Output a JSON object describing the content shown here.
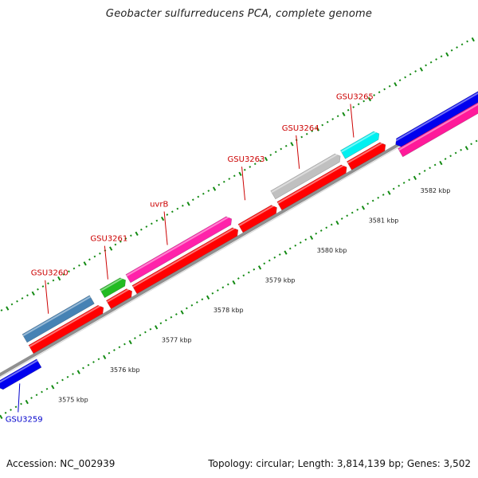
{
  "title": "Geobacter sulfurreducens PCA, complete genome",
  "footer": {
    "accession": "Accession: NC_002939",
    "topology": "Topology: circular; Length: 3,814,139 bp; Genes: 3,502"
  },
  "colors": {
    "label_forward": "#cc0000",
    "label_reverse": "#0000cc",
    "tick": "#138a13",
    "backbone": "#888888"
  },
  "ruler_ticks": [
    {
      "label": "3575 kbp",
      "position_kbp": 3575
    },
    {
      "label": "3576 kbp",
      "position_kbp": 3576
    },
    {
      "label": "3577 kbp",
      "position_kbp": 3577
    },
    {
      "label": "3578 kbp",
      "position_kbp": 3578
    },
    {
      "label": "3579 kbp",
      "position_kbp": 3579
    },
    {
      "label": "3580 kbp",
      "position_kbp": 3580
    },
    {
      "label": "3581 kbp",
      "position_kbp": 3581
    },
    {
      "label": "3582 kbp",
      "position_kbp": 3582
    }
  ],
  "features": [
    {
      "name": "",
      "strand": "reverse",
      "type": "gene",
      "color": "#0000ee",
      "start_kbp": 3574.2,
      "end_kbp": 3575.0,
      "arrow": "back"
    },
    {
      "name": "",
      "strand": "forward",
      "type": "cds",
      "color": "#ff0000",
      "start_kbp": 3575.0,
      "end_kbp": 3576.4,
      "arrow": "forward"
    },
    {
      "name": "",
      "strand": "forward",
      "type": "gene",
      "color": "#4682b4",
      "start_kbp": 3575.0,
      "end_kbp": 3576.3,
      "arrow": "none"
    },
    {
      "name": "",
      "strand": "forward",
      "type": "gene",
      "color": "#22bb22",
      "start_kbp": 3576.5,
      "end_kbp": 3576.95,
      "arrow": "forward"
    },
    {
      "name": "",
      "strand": "forward",
      "type": "cds",
      "color": "#ff0000",
      "start_kbp": 3576.5,
      "end_kbp": 3576.95,
      "arrow": "forward"
    },
    {
      "name": "",
      "strand": "forward",
      "type": "gene",
      "color": "#ff22aa",
      "start_kbp": 3577.0,
      "end_kbp": 3579.0,
      "arrow": "forward"
    },
    {
      "name": "",
      "strand": "forward",
      "type": "cds",
      "color": "#ff0000",
      "start_kbp": 3577.0,
      "end_kbp": 3579.0,
      "arrow": "forward"
    },
    {
      "name": "",
      "strand": "forward",
      "type": "cds",
      "color": "#ff0000",
      "start_kbp": 3579.05,
      "end_kbp": 3579.75,
      "arrow": "forward"
    },
    {
      "name": "",
      "strand": "forward",
      "type": "gene",
      "color": "#c0c0c0",
      "start_kbp": 3579.8,
      "end_kbp": 3581.1,
      "arrow": "forward"
    },
    {
      "name": "",
      "strand": "forward",
      "type": "cds",
      "color": "#ff0000",
      "start_kbp": 3579.8,
      "end_kbp": 3581.1,
      "arrow": "forward"
    },
    {
      "name": "",
      "strand": "forward",
      "type": "gene",
      "color": "#00f0f0",
      "start_kbp": 3581.15,
      "end_kbp": 3581.85,
      "arrow": "forward"
    },
    {
      "name": "",
      "strand": "forward",
      "type": "cds",
      "color": "#ff0000",
      "start_kbp": 3581.15,
      "end_kbp": 3581.85,
      "arrow": "forward"
    },
    {
      "name": "",
      "strand": "forward",
      "type": "gene",
      "color": "#0000ee",
      "start_kbp": 3582.0,
      "end_kbp": 3583.9,
      "arrow": "back"
    },
    {
      "name": "",
      "strand": "forward",
      "type": "gene",
      "color": "#ff1a9a",
      "start_kbp": 3582.0,
      "end_kbp": 3583.9,
      "arrow": "forward"
    }
  ],
  "gene_labels": [
    {
      "text": "GSU3259",
      "strand": "reverse",
      "anchor_kbp": 3574.55,
      "side": "below"
    },
    {
      "text": "GSU3260",
      "strand": "forward",
      "anchor_kbp": 3575.55,
      "side": "above"
    },
    {
      "text": "GSU3261",
      "strand": "forward",
      "anchor_kbp": 3576.7,
      "side": "above"
    },
    {
      "text": "uvrB",
      "strand": "forward",
      "anchor_kbp": 3577.85,
      "side": "above"
    },
    {
      "text": "GSU3263",
      "strand": "forward",
      "anchor_kbp": 3579.35,
      "side": "above"
    },
    {
      "text": "GSU3264",
      "strand": "forward",
      "anchor_kbp": 3580.4,
      "side": "above"
    },
    {
      "text": "GSU3265",
      "strand": "forward",
      "anchor_kbp": 3581.45,
      "side": "above"
    }
  ]
}
